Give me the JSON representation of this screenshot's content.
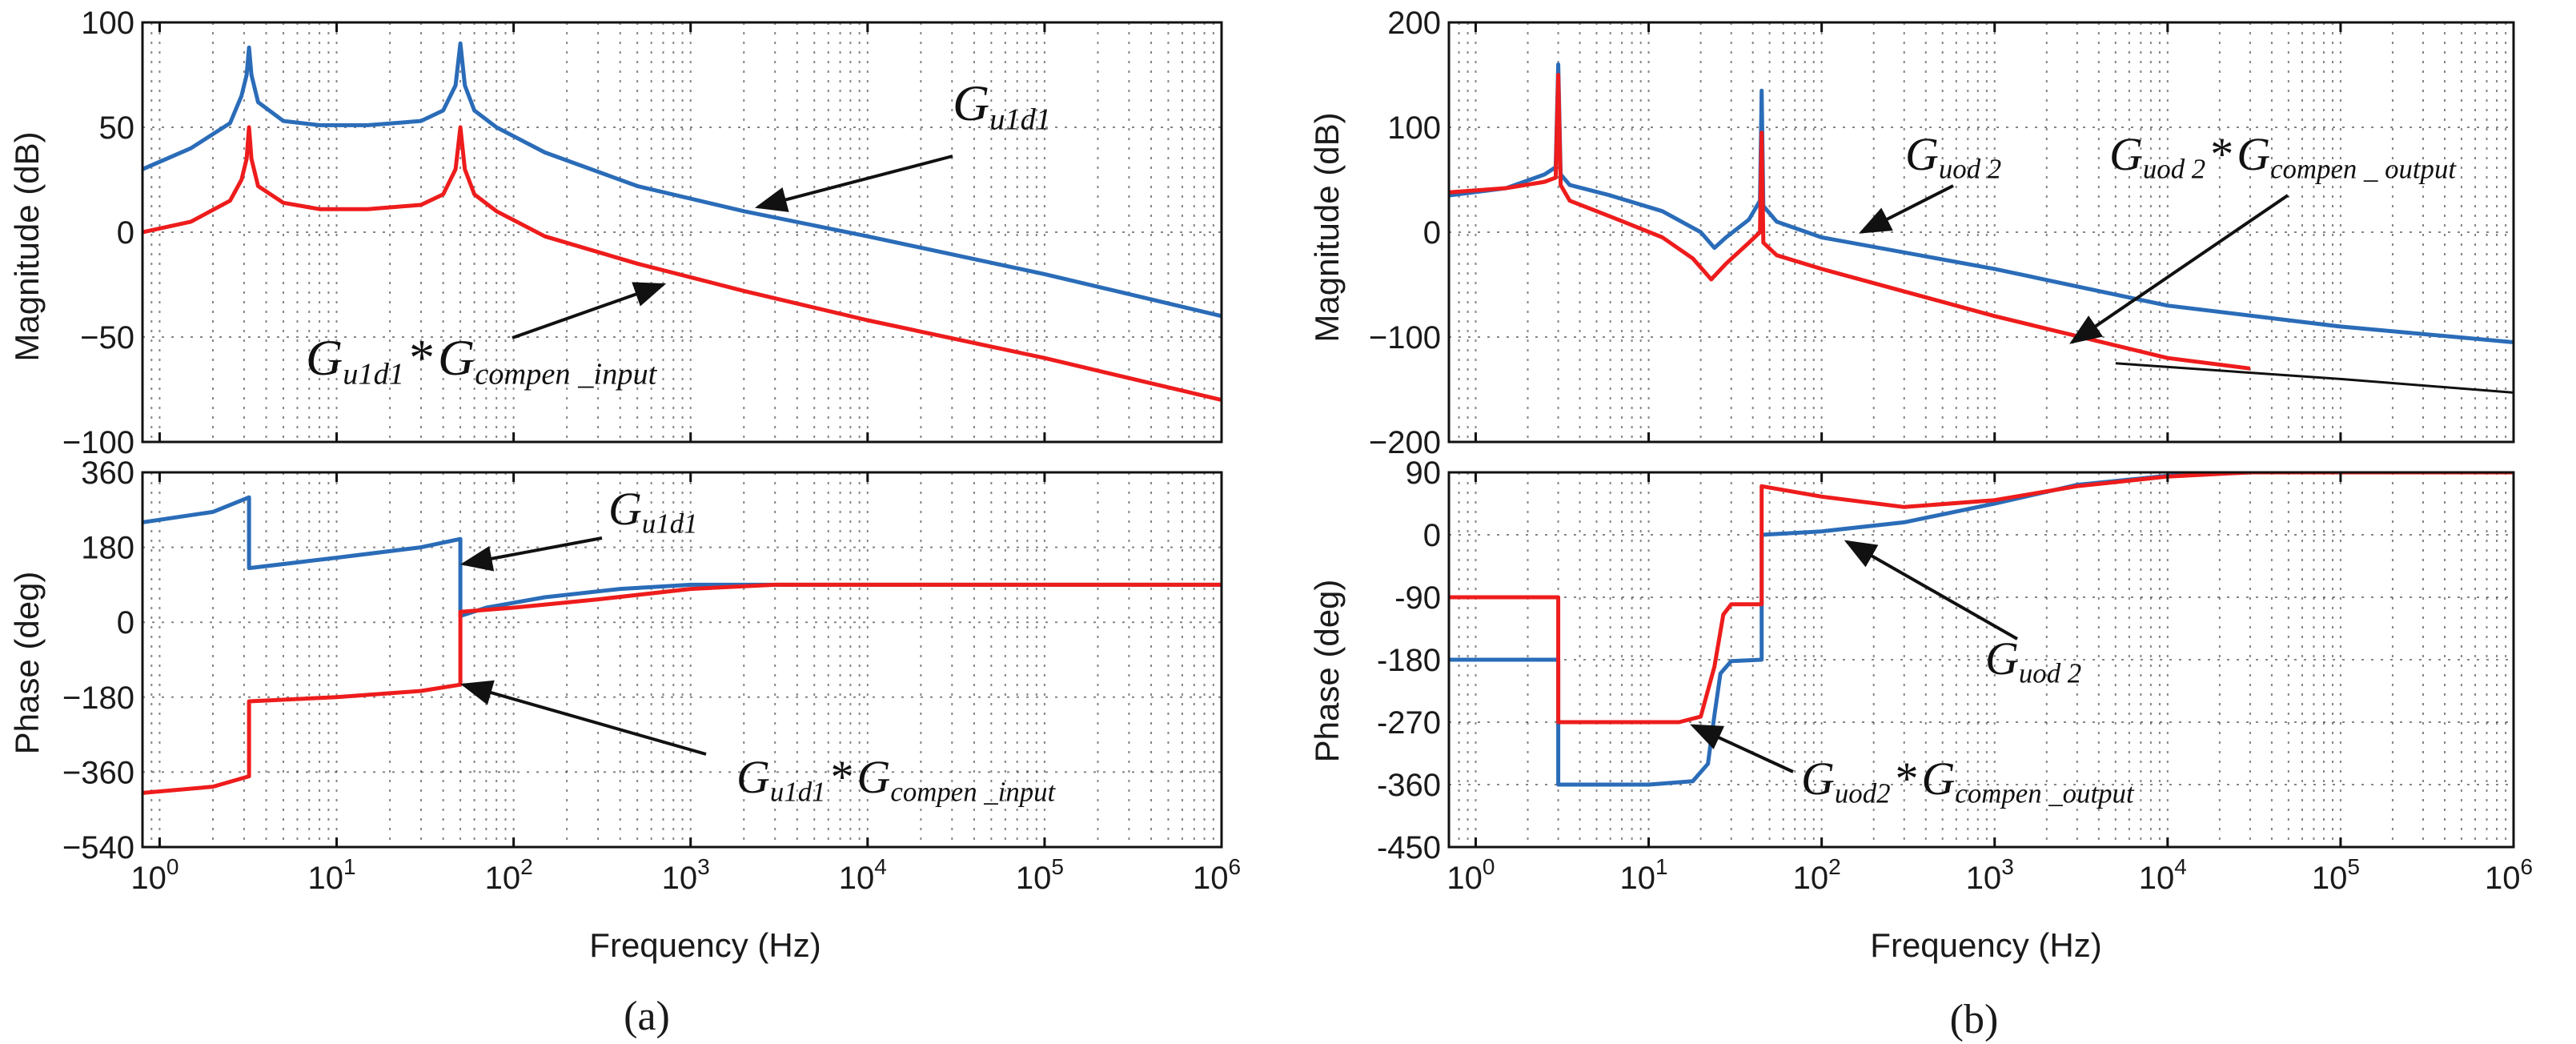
{
  "figure": {
    "x_axis_label": "Frequency  (Hz)",
    "x_ticks": [
      {
        "base": "10",
        "exp": "0"
      },
      {
        "base": "10",
        "exp": "1"
      },
      {
        "base": "10",
        "exp": "2"
      },
      {
        "base": "10",
        "exp": "3"
      },
      {
        "base": "10",
        "exp": "4"
      },
      {
        "base": "10",
        "exp": "5"
      },
      {
        "base": "10",
        "exp": "6"
      }
    ],
    "y_label_mag": "Magnitude (dB)",
    "y_label_phase": "Phase (deg)",
    "captions": [
      "(a)",
      "(b)"
    ]
  },
  "colors": {
    "blue": "#2a6cb8",
    "red": "#ee1c1c",
    "black": "#111111"
  },
  "chart_data": [
    {
      "id": "a",
      "type": "line",
      "title": "(a)",
      "xscale": "log",
      "xlim": [
        0.8,
        1000000
      ],
      "xlabel": "Frequency  (Hz)",
      "magnitude": {
        "ylabel": "Magnitude (dB)",
        "ylim": [
          -100,
          100
        ],
        "yticks": [
          100,
          50,
          0,
          -50,
          -100
        ],
        "ytick_labels": [
          "100",
          "50",
          "0",
          "−50",
          "−100"
        ],
        "series": [
          {
            "name": "G_u1d1",
            "color": "blue",
            "points": [
              [
                0.8,
                30
              ],
              [
                1.5,
                40
              ],
              [
                2.5,
                52
              ],
              [
                2.9,
                65
              ],
              [
                3.1,
                75
              ],
              [
                3.2,
                88
              ],
              [
                3.3,
                75
              ],
              [
                3.6,
                62
              ],
              [
                5,
                53
              ],
              [
                8,
                51
              ],
              [
                15,
                51
              ],
              [
                30,
                53
              ],
              [
                40,
                58
              ],
              [
                47,
                70
              ],
              [
                50,
                90
              ],
              [
                53,
                70
              ],
              [
                60,
                58
              ],
              [
                80,
                50
              ],
              [
                150,
                38
              ],
              [
                500,
                22
              ],
              [
                2000,
                10
              ],
              [
                10000,
                -2
              ],
              [
                100000,
                -20
              ],
              [
                1000000,
                -40
              ]
            ]
          },
          {
            "name": "G_u1d1*G_compen_input",
            "color": "red",
            "points": [
              [
                0.8,
                0
              ],
              [
                1.5,
                5
              ],
              [
                2.5,
                15
              ],
              [
                2.9,
                25
              ],
              [
                3.1,
                35
              ],
              [
                3.2,
                50
              ],
              [
                3.3,
                35
              ],
              [
                3.6,
                22
              ],
              [
                5,
                14
              ],
              [
                8,
                11
              ],
              [
                15,
                11
              ],
              [
                30,
                13
              ],
              [
                40,
                18
              ],
              [
                47,
                30
              ],
              [
                50,
                50
              ],
              [
                53,
                30
              ],
              [
                60,
                18
              ],
              [
                80,
                10
              ],
              [
                150,
                -2
              ],
              [
                500,
                -15
              ],
              [
                2000,
                -28
              ],
              [
                10000,
                -42
              ],
              [
                100000,
                -60
              ],
              [
                1000000,
                -80
              ]
            ]
          }
        ],
        "annotations": [
          {
            "label": "G_u1d1",
            "main": "G",
            "sub": "u1d1",
            "target": [
              2400,
              12
            ]
          },
          {
            "label": "G_u1d1*G_compen_input",
            "main": "G",
            "sub": "u1d1",
            "star": "*",
            "main2": "G",
            "sub2": "compen _input",
            "target": [
              700,
              -25
            ]
          }
        ]
      },
      "phase": {
        "ylabel": "Phase (deg)",
        "ylim": [
          -540,
          360
        ],
        "yticks": [
          360,
          180,
          0,
          -180,
          -360,
          -540
        ],
        "ytick_labels": [
          "360",
          "180",
          "0",
          "−180",
          "−360",
          "−540"
        ],
        "series": [
          {
            "name": "G_u1d1",
            "color": "blue",
            "points": [
              [
                0.8,
                240
              ],
              [
                2,
                265
              ],
              [
                3.2,
                300
              ],
              [
                3.2,
                130
              ],
              [
                10,
                155
              ],
              [
                30,
                180
              ],
              [
                50,
                200
              ],
              [
                50,
                15
              ],
              [
                70,
                35
              ],
              [
                150,
                60
              ],
              [
                400,
                80
              ],
              [
                1000,
                90
              ],
              [
                1000000,
                90
              ]
            ]
          },
          {
            "name": "G_u1d1*G_compen_input",
            "color": "red",
            "points": [
              [
                0.8,
                -410
              ],
              [
                2,
                -395
              ],
              [
                3.2,
                -370
              ],
              [
                3.2,
                -190
              ],
              [
                10,
                -180
              ],
              [
                30,
                -165
              ],
              [
                50,
                -150
              ],
              [
                50,
                25
              ],
              [
                100,
                35
              ],
              [
                300,
                55
              ],
              [
                1000,
                80
              ],
              [
                3000,
                90
              ],
              [
                1000000,
                90
              ]
            ]
          }
        ],
        "annotations": [
          {
            "label": "G_u1d1",
            "main": "G",
            "sub": "u1d1",
            "target": [
              52,
              140
            ]
          },
          {
            "label": "G_u1d1*G_compen_input",
            "main": "G",
            "sub": "u1d1",
            "star": "*",
            "main2": "G",
            "sub2": "compen _input",
            "target": [
              52,
              -150
            ]
          }
        ]
      }
    },
    {
      "id": "b",
      "type": "line",
      "title": "(b)",
      "xscale": "log",
      "xlim": [
        0.7,
        1000000
      ],
      "xlabel": "Frequency  (Hz)",
      "magnitude": {
        "ylabel": "Magnitude (dB)",
        "ylim": [
          -200,
          200
        ],
        "yticks": [
          200,
          100,
          0,
          -100,
          -200
        ],
        "ytick_labels": [
          "200",
          "100",
          "0",
          "−100",
          "−200"
        ],
        "series": [
          {
            "name": "G_uod2",
            "color": "blue",
            "points": [
              [
                0.7,
                35
              ],
              [
                1.5,
                42
              ],
              [
                2.5,
                55
              ],
              [
                2.9,
                62
              ],
              [
                3.0,
                160
              ],
              [
                3.1,
                55
              ],
              [
                3.5,
                45
              ],
              [
                6,
                35
              ],
              [
                12,
                20
              ],
              [
                20,
                0
              ],
              [
                24,
                -15
              ],
              [
                28,
                -5
              ],
              [
                38,
                12
              ],
              [
                44,
                30
              ],
              [
                45,
                135
              ],
              [
                46,
                25
              ],
              [
                55,
                10
              ],
              [
                100,
                -5
              ],
              [
                1000,
                -35
              ],
              [
                10000,
                -70
              ],
              [
                100000,
                -90
              ],
              [
                1000000,
                -105
              ]
            ]
          },
          {
            "name": "G_uod2*G_compen_output",
            "color": "red",
            "points": [
              [
                0.7,
                38
              ],
              [
                1.5,
                42
              ],
              [
                2.5,
                48
              ],
              [
                2.9,
                52
              ],
              [
                3.0,
                150
              ],
              [
                3.1,
                45
              ],
              [
                3.5,
                30
              ],
              [
                6,
                15
              ],
              [
                12,
                -5
              ],
              [
                18,
                -25
              ],
              [
                23,
                -45
              ],
              [
                28,
                -30
              ],
              [
                38,
                -10
              ],
              [
                44,
                0
              ],
              [
                45,
                95
              ],
              [
                46,
                -10
              ],
              [
                55,
                -22
              ],
              [
                100,
                -35
              ],
              [
                1000,
                -80
              ],
              [
                10000,
                -120
              ],
              [
                30000,
                -130
              ]
            ]
          },
          {
            "name": "asymptote",
            "color": "black",
            "points": [
              [
                5000,
                -125
              ],
              [
                100000,
                -140
              ],
              [
                1000000,
                -153
              ]
            ]
          }
        ],
        "annotations": [
          {
            "label": "G_uod2",
            "main": "G",
            "sub": "uod 2",
            "target": [
              170,
              0
            ]
          },
          {
            "label": "G_uod2*G_compen_output",
            "main": "G",
            "sub": "uod 2",
            "star": "*",
            "main2": "G",
            "sub2": "compen _ output",
            "target": [
              2800,
              -105
            ]
          }
        ]
      },
      "phase": {
        "ylabel": "Phase (deg)",
        "ylim": [
          -450,
          90
        ],
        "yticks": [
          90,
          0,
          -90,
          -180,
          -270,
          -360,
          -450
        ],
        "ytick_labels": [
          "90",
          "0",
          "-90",
          "-180",
          "-270",
          "-360",
          "-450"
        ],
        "series": [
          {
            "name": "G_uod2",
            "color": "blue",
            "points": [
              [
                0.7,
                -180
              ],
              [
                3,
                -180
              ],
              [
                3,
                -360
              ],
              [
                10,
                -360
              ],
              [
                18,
                -355
              ],
              [
                22,
                -330
              ],
              [
                24,
                -260
              ],
              [
                26,
                -200
              ],
              [
                30,
                -182
              ],
              [
                45,
                -180
              ],
              [
                45,
                0
              ],
              [
                100,
                5
              ],
              [
                300,
                18
              ],
              [
                1000,
                45
              ],
              [
                3000,
                72
              ],
              [
                10000,
                85
              ],
              [
                30000,
                90
              ],
              [
                1000000,
                90
              ]
            ]
          },
          {
            "name": "G_uod2*G_compen_output",
            "color": "red",
            "points": [
              [
                0.7,
                -90
              ],
              [
                3,
                -90
              ],
              [
                3,
                -270
              ],
              [
                15,
                -270
              ],
              [
                20,
                -262
              ],
              [
                24,
                -190
              ],
              [
                27,
                -115
              ],
              [
                30,
                -100
              ],
              [
                45,
                -100
              ],
              [
                45,
                70
              ],
              [
                100,
                55
              ],
              [
                300,
                40
              ],
              [
                1000,
                50
              ],
              [
                3000,
                70
              ],
              [
                10000,
                84
              ],
              [
                30000,
                90
              ],
              [
                1000000,
                90
              ]
            ]
          }
        ],
        "annotations": [
          {
            "label": "G_uod2",
            "main": "G",
            "sub": "uod 2",
            "target": [
              140,
              -10
            ]
          },
          {
            "label": "G_uod2*G_compen_output",
            "main": "G",
            "sub": "uod2",
            "star": "*",
            "main2": "G",
            "sub2": "compen _output",
            "target": [
              18,
              -275
            ]
          }
        ]
      }
    }
  ]
}
